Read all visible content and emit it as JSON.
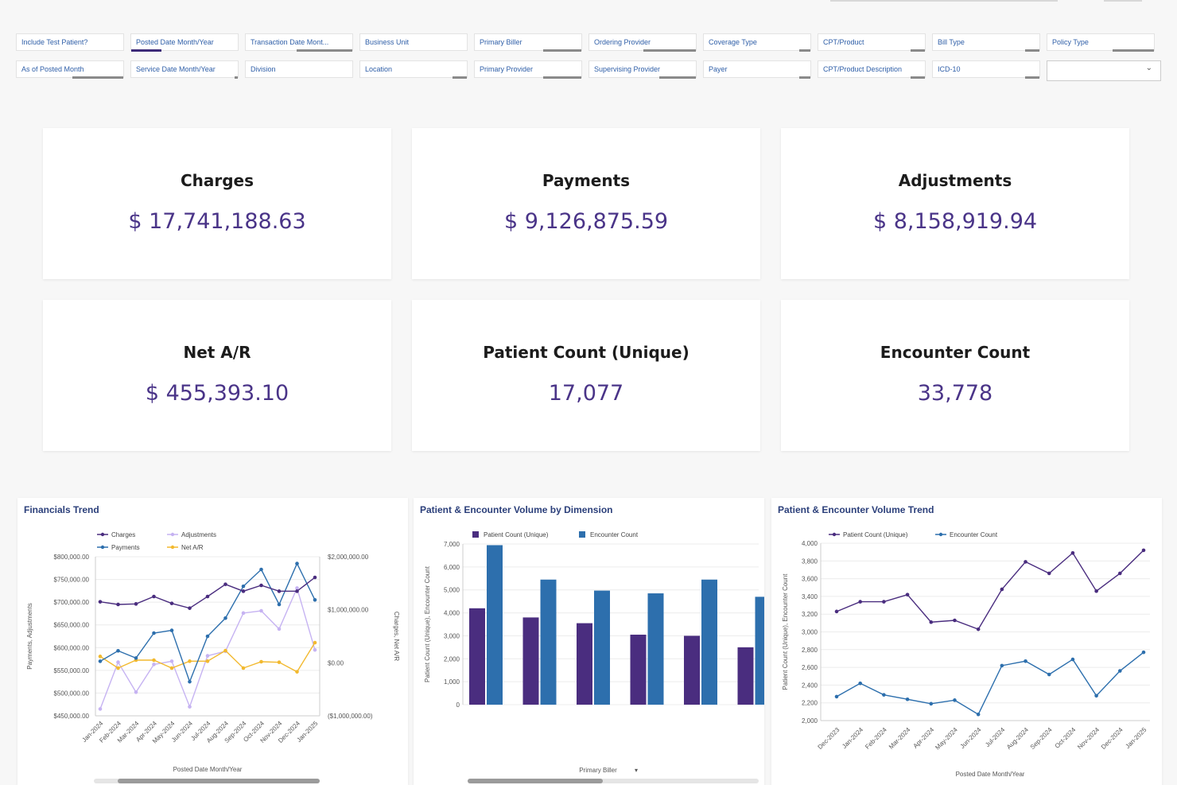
{
  "filters": {
    "row1": [
      "Include Test Patient?",
      "Posted Date Month/Year",
      "Transaction Date Mont...",
      "Business Unit",
      "Primary Biller",
      "Ordering Provider",
      "Coverage Type",
      "CPT/Product",
      "Bill Type",
      "Policy Type"
    ],
    "row2": [
      "As of Posted Month",
      "Service Date Month/Year",
      "Division",
      "Location",
      "Primary Provider",
      "Supervising Provider",
      "Payer",
      "CPT/Product Description",
      "ICD-10",
      ""
    ]
  },
  "kpis": [
    {
      "title": "Charges",
      "value": "$ 17,741,188.63"
    },
    {
      "title": "Payments",
      "value": "$ 9,126,875.59"
    },
    {
      "title": "Adjustments",
      "value": "$ 8,158,919.94"
    },
    {
      "title": "Net A/R",
      "value": "$ 455,393.10"
    },
    {
      "title": "Patient Count (Unique)",
      "value": "17,077"
    },
    {
      "title": "Encounter Count",
      "value": "33,778"
    }
  ],
  "colors": {
    "purple": "#4a2d7f",
    "blue": "#2d6fad",
    "lilac": "#c6b3f2",
    "orange": "#f2b92f",
    "kpi_value": "#4a3488"
  },
  "panels": {
    "financials": {
      "title": "Financials Trend"
    },
    "volume_dim": {
      "title": "Patient & Encounter Volume by Dimension"
    },
    "volume_trend": {
      "title": "Patient & Encounter Volume Trend"
    }
  },
  "chart_data": [
    {
      "type": "line",
      "title": "Financials Trend",
      "xlabel": "Posted Date Month/Year",
      "ylabel": "Payments, Adjustments",
      "y2label": "Charges, Net A/R",
      "x": [
        "Jan-2024",
        "Feb-2024",
        "Mar-2024",
        "Apr-2024",
        "May-2024",
        "Jun-2024",
        "Jul-2024",
        "Aug-2024",
        "Sep-2024",
        "Oct-2024",
        "Nov-2024",
        "Dec-2024",
        "Jan-2025"
      ],
      "yticks": [
        "$800,000.00",
        "$750,000.00",
        "$700,000.00",
        "$650,000.00",
        "$600,000.00",
        "$550,000.00",
        "$500,000.00",
        "$450,000.00"
      ],
      "y2ticks": [
        "$2,000,000.00",
        "$1,000,000.00",
        "$0.00",
        "($1,000,000.00)"
      ],
      "ylim": [
        450000,
        800000
      ],
      "y2lim": [
        -1000000,
        2000000
      ],
      "series": [
        {
          "name": "Charges",
          "axis": "right",
          "values": [
            1150000,
            1100000,
            1110000,
            1250000,
            1120000,
            1030000,
            1250000,
            1480000,
            1350000,
            1460000,
            1350000,
            1350000,
            1610000
          ]
        },
        {
          "name": "Payments",
          "axis": "left",
          "values": [
            570000,
            593000,
            577000,
            632000,
            638000,
            525000,
            625000,
            665000,
            735000,
            772000,
            695000,
            785000,
            705000
          ]
        },
        {
          "name": "Adjustments",
          "axis": "left",
          "values": [
            465000,
            568000,
            502000,
            563000,
            570000,
            470000,
            582000,
            592000,
            676000,
            681000,
            641000,
            731000,
            595000
          ]
        },
        {
          "name": "Net A/R",
          "axis": "right",
          "values": [
            120000,
            -100000,
            50000,
            50000,
            -100000,
            30000,
            30000,
            230000,
            -100000,
            20000,
            10000,
            -170000,
            380000
          ]
        }
      ]
    },
    {
      "type": "bar",
      "title": "Patient & Encounter Volume by Dimension",
      "xlabel": "Primary Biller",
      "ylabel": "Patient Count (Unique), Encounter Count",
      "ylim": [
        0,
        7000
      ],
      "yticks": [
        "7,000",
        "6,000",
        "5,000",
        "4,000",
        "3,000",
        "2,000",
        "1,000",
        "0"
      ],
      "categories": [
        "",
        "",
        "",
        "",
        "",
        ""
      ],
      "series": [
        {
          "name": "Patient Count (Unique)",
          "values": [
            4200,
            3800,
            3550,
            3050,
            3000,
            2500
          ]
        },
        {
          "name": "Encounter Count",
          "values": [
            6950,
            5450,
            4970,
            4850,
            5450,
            4700
          ]
        }
      ]
    },
    {
      "type": "line",
      "title": "Patient & Encounter Volume Trend",
      "xlabel": "Posted Date Month/Year",
      "ylabel": "Patient Count (Unique), Encounter Count",
      "ylim": [
        2000,
        4000
      ],
      "yticks": [
        "4,000",
        "3,800",
        "3,600",
        "3,400",
        "3,200",
        "3,000",
        "2,800",
        "2,600",
        "2,400",
        "2,200",
        "2,000"
      ],
      "x": [
        "Dec-2023",
        "Jan-2024",
        "Feb-2024",
        "Mar-2024",
        "Apr-2024",
        "May-2024",
        "Jun-2024",
        "Jul-2024",
        "Aug-2024",
        "Sep-2024",
        "Oct-2024",
        "Nov-2024",
        "Dec-2024",
        "Jan-2025"
      ],
      "series": [
        {
          "name": "Patient Count (Unique)",
          "values": [
            3230,
            3340,
            3340,
            3420,
            3110,
            3130,
            3030,
            3480,
            3790,
            3660,
            3890,
            3460,
            3660,
            3920
          ]
        },
        {
          "name": "Encounter Count",
          "values": [
            2270,
            2420,
            2290,
            2240,
            2190,
            2230,
            2070,
            2620,
            2670,
            2520,
            2690,
            2280,
            2560,
            2770
          ]
        }
      ]
    }
  ]
}
